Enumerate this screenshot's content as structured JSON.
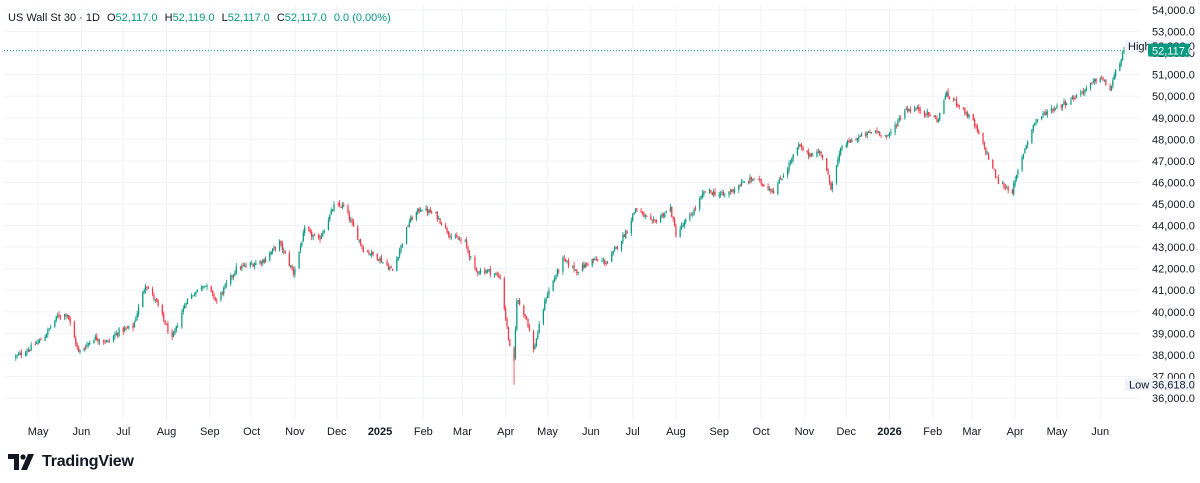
{
  "header": {
    "symbol": "US Wall St 30 · 1D",
    "open_label": "O",
    "open": "52,117.0",
    "high_label": "H",
    "high": "52,119.0",
    "low_label": "L",
    "low": "52,117.0",
    "close_label": "C",
    "close": "52,117.0",
    "change": "0.0 (0.00%)"
  },
  "brand": {
    "name": "TradingView"
  },
  "colors": {
    "up": "#089981",
    "down": "#f23645",
    "grid": "#f0f3fa",
    "text": "#131722"
  },
  "chart_data": {
    "type": "candlestick",
    "ylim": [
      35500,
      54200
    ],
    "y_ticks": [
      "54,000.0",
      "53,000.0",
      "52,000.0",
      "51,000.0",
      "50,000.0",
      "49,000.0",
      "48,000.0",
      "47,000.0",
      "46,000.0",
      "45,000.0",
      "44,000.0",
      "43,000.0",
      "42,000.0",
      "41,000.0",
      "40,000.0",
      "39,000.0",
      "38,000.0",
      "37,000.0",
      "36,000.0"
    ],
    "y_tick_values": [
      54000,
      53000,
      52000,
      51000,
      50000,
      49000,
      48000,
      47000,
      46000,
      45000,
      44000,
      43000,
      42000,
      41000,
      40000,
      39000,
      38000,
      37000,
      36000
    ],
    "x_ticks": [
      {
        "label": "May",
        "date": "2024-05-01",
        "bold": false
      },
      {
        "label": "Jun",
        "date": "2024-06-01",
        "bold": false
      },
      {
        "label": "Jul",
        "date": "2024-07-01",
        "bold": false
      },
      {
        "label": "Aug",
        "date": "2024-08-01",
        "bold": false
      },
      {
        "label": "Sep",
        "date": "2024-09-01",
        "bold": false
      },
      {
        "label": "Oct",
        "date": "2024-10-01",
        "bold": false
      },
      {
        "label": "Nov",
        "date": "2024-11-01",
        "bold": false
      },
      {
        "label": "Dec",
        "date": "2024-12-01",
        "bold": false
      },
      {
        "label": "2025",
        "date": "2025-01-01",
        "bold": true
      },
      {
        "label": "Feb",
        "date": "2025-02-01",
        "bold": false
      },
      {
        "label": "Mar",
        "date": "2025-03-01",
        "bold": false
      },
      {
        "label": "Apr",
        "date": "2025-04-01",
        "bold": false
      },
      {
        "label": "May",
        "date": "2025-05-01",
        "bold": false
      },
      {
        "label": "Jun",
        "date": "2025-06-01",
        "bold": false
      },
      {
        "label": "Jul",
        "date": "2025-07-01",
        "bold": false
      },
      {
        "label": "Aug",
        "date": "2025-08-01",
        "bold": false
      },
      {
        "label": "Sep",
        "date": "2025-09-01",
        "bold": false
      },
      {
        "label": "Oct",
        "date": "2025-10-01",
        "bold": false
      },
      {
        "label": "Nov",
        "date": "2025-11-01",
        "bold": false
      },
      {
        "label": "Dec",
        "date": "2025-12-01",
        "bold": false
      },
      {
        "label": "2026",
        "date": "2026-01-01",
        "bold": true
      },
      {
        "label": "Feb",
        "date": "2026-02-01",
        "bold": false
      },
      {
        "label": "Mar",
        "date": "2026-03-01",
        "bold": false
      },
      {
        "label": "Apr",
        "date": "2026-04-01",
        "bold": false
      },
      {
        "label": "May",
        "date": "2026-05-01",
        "bold": false
      },
      {
        "label": "Jun",
        "date": "2026-06-01",
        "bold": false
      }
    ],
    "close_path": [
      [
        "2024-04-15",
        37900
      ],
      [
        "2024-04-25",
        38300
      ],
      [
        "2024-05-05",
        38800
      ],
      [
        "2024-05-15",
        39800
      ],
      [
        "2024-05-22",
        39900
      ],
      [
        "2024-05-30",
        38100
      ],
      [
        "2024-06-10",
        38800
      ],
      [
        "2024-06-20",
        38600
      ],
      [
        "2024-06-28",
        39100
      ],
      [
        "2024-07-08",
        39300
      ],
      [
        "2024-07-17",
        41300
      ],
      [
        "2024-07-25",
        40400
      ],
      [
        "2024-08-05",
        38700
      ],
      [
        "2024-08-15",
        40500
      ],
      [
        "2024-08-28",
        41300
      ],
      [
        "2024-09-06",
        40500
      ],
      [
        "2024-09-20",
        42000
      ],
      [
        "2024-10-01",
        42200
      ],
      [
        "2024-10-10",
        42400
      ],
      [
        "2024-10-21",
        43200
      ],
      [
        "2024-10-31",
        41800
      ],
      [
        "2024-11-08",
        43800
      ],
      [
        "2024-11-18",
        43300
      ],
      [
        "2024-11-29",
        44900
      ],
      [
        "2024-12-06",
        44900
      ],
      [
        "2024-12-20",
        42900
      ],
      [
        "2024-12-31",
        42500
      ],
      [
        "2025-01-10",
        41900
      ],
      [
        "2025-01-22",
        44200
      ],
      [
        "2025-01-30",
        44800
      ],
      [
        "2025-02-10",
        44500
      ],
      [
        "2025-02-21",
        43500
      ],
      [
        "2025-03-03",
        43200
      ],
      [
        "2025-03-10",
        41900
      ],
      [
        "2025-03-20",
        41900
      ],
      [
        "2025-03-28",
        41600
      ],
      [
        "2025-04-04",
        38300
      ],
      [
        "2025-04-07",
        37700
      ],
      [
        "2025-04-09",
        40600
      ],
      [
        "2025-04-16",
        39700
      ],
      [
        "2025-04-21",
        38200
      ],
      [
        "2025-04-30",
        40700
      ],
      [
        "2025-05-12",
        42400
      ],
      [
        "2025-05-22",
        41900
      ],
      [
        "2025-06-02",
        42400
      ],
      [
        "2025-06-13",
        42300
      ],
      [
        "2025-06-27",
        43800
      ],
      [
        "2025-07-03",
        44800
      ],
      [
        "2025-07-15",
        44100
      ],
      [
        "2025-07-28",
        44800
      ],
      [
        "2025-08-01",
        43600
      ],
      [
        "2025-08-12",
        44500
      ],
      [
        "2025-08-22",
        45600
      ],
      [
        "2025-09-05",
        45400
      ],
      [
        "2025-09-16",
        45900
      ],
      [
        "2025-09-26",
        46200
      ],
      [
        "2025-10-10",
        45600
      ],
      [
        "2025-10-20",
        46700
      ],
      [
        "2025-10-28",
        47700
      ],
      [
        "2025-11-03",
        47300
      ],
      [
        "2025-11-13",
        47400
      ],
      [
        "2025-11-20",
        45800
      ],
      [
        "2025-11-28",
        47700
      ],
      [
        "2025-12-10",
        48100
      ],
      [
        "2025-12-22",
        48400
      ],
      [
        "2025-12-31",
        48100
      ],
      [
        "2026-01-12",
        49400
      ],
      [
        "2026-01-22",
        49400
      ],
      [
        "2026-02-05",
        48900
      ],
      [
        "2026-02-10",
        50100
      ],
      [
        "2026-02-20",
        49600
      ],
      [
        "2026-03-02",
        48800
      ],
      [
        "2026-03-10",
        47600
      ],
      [
        "2026-03-20",
        46000
      ],
      [
        "2026-03-30",
        45600
      ],
      [
        "2026-04-08",
        47600
      ],
      [
        "2026-04-15",
        48800
      ],
      [
        "2026-04-24",
        49300
      ],
      [
        "2026-05-04",
        49600
      ],
      [
        "2026-05-12",
        49900
      ],
      [
        "2026-05-21",
        50300
      ],
      [
        "2026-06-01",
        50900
      ],
      [
        "2026-06-08",
        50300
      ],
      [
        "2026-06-12",
        51100
      ],
      [
        "2026-06-18",
        52117
      ]
    ],
    "last_price": 52117,
    "last_price_label": "52,117.0",
    "high": {
      "label": "High",
      "value": 52288,
      "value_label": "52,288.0"
    },
    "low": {
      "label": "Low",
      "value": 36618,
      "value_label": "36,618.0"
    }
  }
}
